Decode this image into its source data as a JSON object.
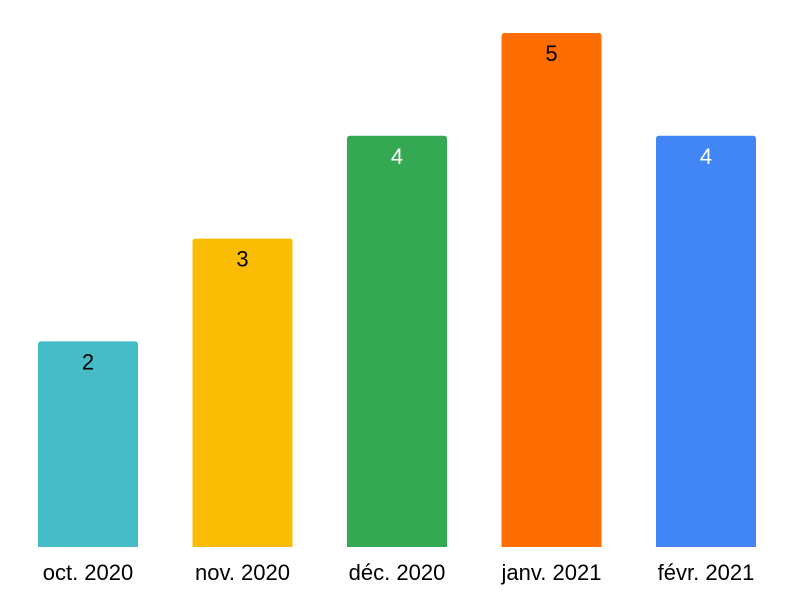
{
  "chart_data": {
    "type": "bar",
    "categories": [
      "oct. 2020",
      "nov. 2020",
      "déc. 2020",
      "janv. 2021",
      "févr. 2021"
    ],
    "values": [
      2,
      3,
      4,
      5,
      4
    ],
    "data_labels": [
      "2",
      "3",
      "4",
      "5",
      "4"
    ],
    "colors": [
      "#46BDC6",
      "#FBBC04",
      "#34A853",
      "#FF6D01",
      "#4285F4"
    ],
    "label_colors": [
      "#000000",
      "#000000",
      "#ffffff",
      "#000000",
      "#ffffff"
    ],
    "ylim": [
      0,
      5
    ],
    "grid": false,
    "legend": "none"
  }
}
